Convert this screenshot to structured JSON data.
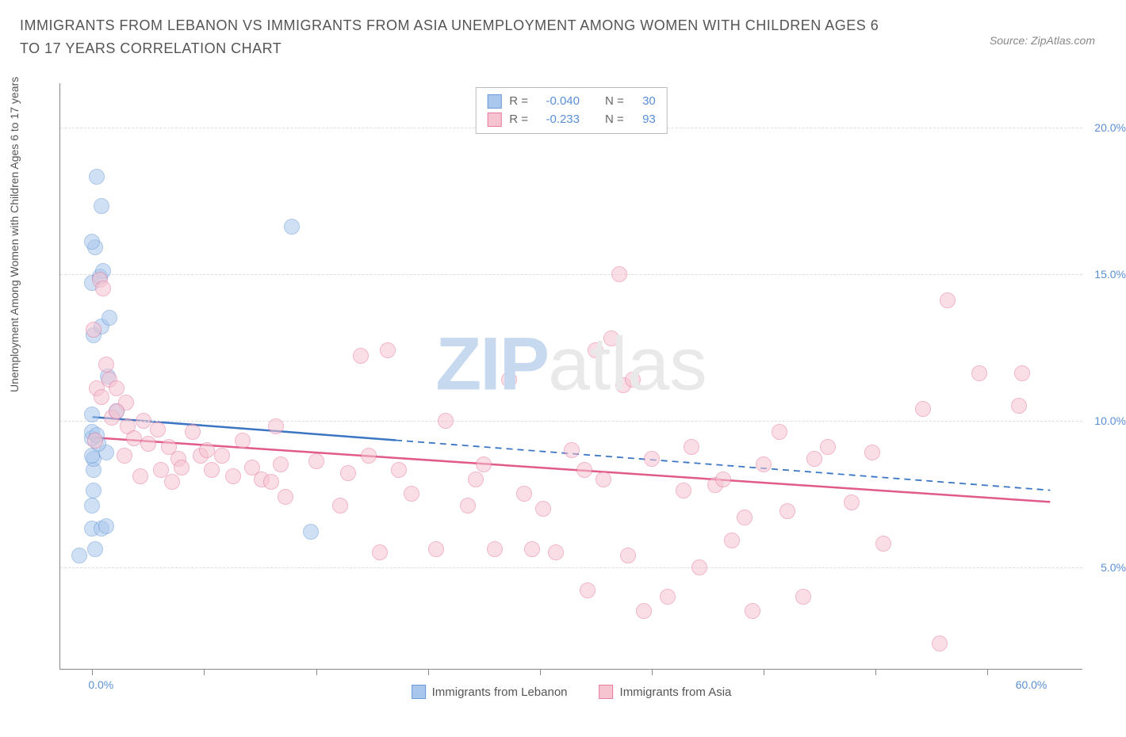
{
  "title": "IMMIGRANTS FROM LEBANON VS IMMIGRANTS FROM ASIA UNEMPLOYMENT AMONG WOMEN WITH CHILDREN AGES 6 TO 17 YEARS CORRELATION CHART",
  "source": "Source: ZipAtlas.com",
  "yaxis_label": "Unemployment Among Women with Children Ages 6 to 17 years",
  "watermark": {
    "part1": "ZIP",
    "part2": "atlas"
  },
  "chart": {
    "type": "scatter",
    "xlim": [
      -2,
      62
    ],
    "ylim": [
      1.5,
      21.5
    ],
    "yticks": [
      5.0,
      10.0,
      15.0,
      20.0
    ],
    "ytick_labels": [
      "5.0%",
      "10.0%",
      "15.0%",
      "20.0%"
    ],
    "xtick_marks": [
      0,
      7,
      14,
      21,
      28,
      35,
      42,
      49,
      56
    ],
    "xtick_labels": [
      {
        "x": 0,
        "label": "0.0%"
      },
      {
        "x": 60,
        "label": "60.0%"
      }
    ],
    "grid_color": "#dddddd",
    "axis_color": "#888888",
    "label_color": "#5b8fd6",
    "background_color": "#ffffff",
    "marker_radius": 10,
    "marker_opacity": 0.55,
    "marker_stroke_width": 1.2
  },
  "series": [
    {
      "name": "Immigrants from Lebanon",
      "fill": "#a9c7ec",
      "stroke": "#6a9bd8",
      "trend_color": "#3b76c4",
      "R": "-0.040",
      "N": "30",
      "trend": {
        "x1": 0,
        "y1": 10.1,
        "x2": 60,
        "y2": 7.6,
        "solid_until_x": 19
      },
      "points": [
        [
          -0.8,
          5.4
        ],
        [
          0.2,
          5.6
        ],
        [
          0.0,
          6.3
        ],
        [
          0.6,
          6.3
        ],
        [
          0.9,
          6.4
        ],
        [
          0.0,
          7.1
        ],
        [
          0.1,
          7.6
        ],
        [
          0.1,
          8.3
        ],
        [
          0.1,
          8.7
        ],
        [
          0.9,
          8.9
        ],
        [
          0.0,
          8.8
        ],
        [
          0.4,
          9.2
        ],
        [
          0.0,
          9.4
        ],
        [
          0.0,
          9.6
        ],
        [
          0.3,
          9.5
        ],
        [
          0.0,
          10.2
        ],
        [
          1.5,
          10.3
        ],
        [
          0.1,
          12.9
        ],
        [
          0.6,
          13.2
        ],
        [
          1.1,
          13.5
        ],
        [
          0.0,
          14.7
        ],
        [
          0.5,
          14.9
        ],
        [
          0.7,
          15.1
        ],
        [
          0.2,
          15.9
        ],
        [
          0.0,
          16.1
        ],
        [
          0.6,
          17.3
        ],
        [
          0.3,
          18.3
        ],
        [
          12.5,
          16.6
        ],
        [
          13.7,
          6.2
        ],
        [
          1.0,
          11.5
        ]
      ]
    },
    {
      "name": "Immigrants from Asia",
      "fill": "#f6c4d1",
      "stroke": "#e77ba0",
      "trend_color": "#e05a8a",
      "R": "-0.233",
      "N": "93",
      "trend": {
        "x1": 0,
        "y1": 9.4,
        "x2": 60,
        "y2": 7.2,
        "solid_until_x": 60
      },
      "points": [
        [
          0.5,
          14.8
        ],
        [
          0.7,
          14.5
        ],
        [
          0.1,
          13.1
        ],
        [
          0.9,
          11.9
        ],
        [
          1.1,
          11.4
        ],
        [
          0.3,
          11.1
        ],
        [
          0.6,
          10.8
        ],
        [
          1.5,
          11.1
        ],
        [
          2.1,
          10.6
        ],
        [
          1.2,
          10.1
        ],
        [
          0.2,
          9.3
        ],
        [
          1.5,
          10.3
        ],
        [
          2.2,
          9.8
        ],
        [
          2.6,
          9.4
        ],
        [
          3.2,
          10.0
        ],
        [
          2.0,
          8.8
        ],
        [
          3.5,
          9.2
        ],
        [
          4.1,
          9.7
        ],
        [
          4.8,
          9.1
        ],
        [
          5.4,
          8.7
        ],
        [
          3.0,
          8.1
        ],
        [
          4.3,
          8.3
        ],
        [
          5.0,
          7.9
        ],
        [
          5.6,
          8.4
        ],
        [
          6.3,
          9.6
        ],
        [
          6.8,
          8.8
        ],
        [
          7.2,
          9.0
        ],
        [
          7.5,
          8.3
        ],
        [
          8.1,
          8.8
        ],
        [
          8.8,
          8.1
        ],
        [
          9.4,
          9.3
        ],
        [
          10.0,
          8.4
        ],
        [
          10.6,
          8.0
        ],
        [
          11.2,
          7.9
        ],
        [
          11.8,
          8.5
        ],
        [
          11.5,
          9.8
        ],
        [
          12.1,
          7.4
        ],
        [
          14.0,
          8.6
        ],
        [
          15.5,
          7.1
        ],
        [
          16.0,
          8.2
        ],
        [
          16.8,
          12.2
        ],
        [
          17.3,
          8.8
        ],
        [
          18.0,
          5.5
        ],
        [
          18.5,
          12.4
        ],
        [
          19.2,
          8.3
        ],
        [
          20.0,
          7.5
        ],
        [
          21.5,
          5.6
        ],
        [
          22.1,
          10.0
        ],
        [
          23.5,
          7.1
        ],
        [
          24.0,
          8.0
        ],
        [
          24.5,
          8.5
        ],
        [
          25.2,
          5.6
        ],
        [
          26.1,
          11.4
        ],
        [
          27.0,
          7.5
        ],
        [
          27.5,
          5.6
        ],
        [
          28.2,
          7.0
        ],
        [
          29.0,
          5.5
        ],
        [
          30.0,
          9.0
        ],
        [
          30.8,
          8.3
        ],
        [
          31.0,
          4.2
        ],
        [
          31.5,
          12.4
        ],
        [
          32.0,
          8.0
        ],
        [
          32.5,
          12.8
        ],
        [
          33.0,
          15.0
        ],
        [
          33.2,
          11.2
        ],
        [
          33.5,
          5.4
        ],
        [
          33.8,
          11.4
        ],
        [
          34.5,
          3.5
        ],
        [
          35.0,
          8.7
        ],
        [
          36.0,
          4.0
        ],
        [
          37.0,
          7.6
        ],
        [
          37.5,
          9.1
        ],
        [
          38.0,
          5.0
        ],
        [
          39.0,
          7.8
        ],
        [
          39.5,
          8.0
        ],
        [
          40.0,
          5.9
        ],
        [
          40.8,
          6.7
        ],
        [
          41.3,
          3.5
        ],
        [
          42.0,
          8.5
        ],
        [
          43.0,
          9.6
        ],
        [
          43.5,
          6.9
        ],
        [
          44.5,
          4.0
        ],
        [
          45.2,
          8.7
        ],
        [
          46.0,
          9.1
        ],
        [
          47.5,
          7.2
        ],
        [
          48.8,
          8.9
        ],
        [
          49.5,
          5.8
        ],
        [
          52.0,
          10.4
        ],
        [
          53.0,
          2.4
        ],
        [
          55.5,
          11.6
        ],
        [
          53.5,
          14.1
        ],
        [
          58.0,
          10.5
        ],
        [
          58.2,
          11.6
        ]
      ]
    }
  ],
  "legend_top": {
    "r_label": "R =",
    "n_label": "N ="
  }
}
